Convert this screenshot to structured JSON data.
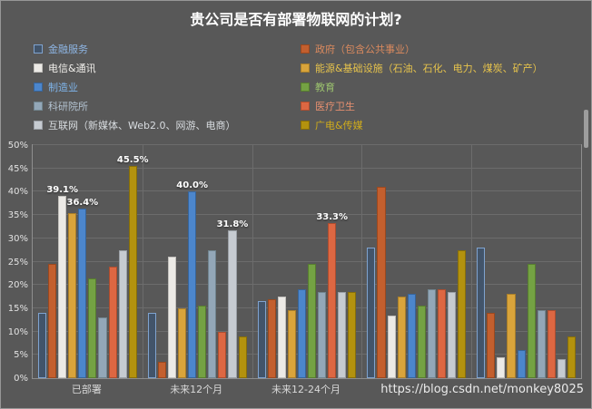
{
  "watermark": "https://blog.csdn.net/monkey8025",
  "chart_data": {
    "type": "bar",
    "title": "贵公司是否有部署物联网的计划?",
    "categories": [
      "已部署",
      "未来12个月",
      "未来12-24个月",
      "",
      ""
    ],
    "ylim": [
      0,
      50
    ],
    "ytick_step": 5,
    "ytick_suffix": "%",
    "grid": true,
    "legend_position": "top",
    "series": [
      {
        "name": "金融服务",
        "fill": "#42546a",
        "border": "#7fa3cf",
        "legend_text": "#8db4e2",
        "values": [
          14.0,
          14.0,
          16.5,
          28.0,
          28.0
        ]
      },
      {
        "name": "政府（包含公共事业）",
        "fill": "#c35f2e",
        "border": "#99481f",
        "legend_text": "#db8a5e",
        "values": [
          24.5,
          3.5,
          17.0,
          41.0,
          14.0
        ]
      },
      {
        "name": "电信&通讯",
        "fill": "#eceae6",
        "border": "#c2c0bc",
        "legend_text": "#f0eeea",
        "values": [
          39.1,
          26.0,
          17.5,
          13.5,
          4.5
        ]
      },
      {
        "name": "能源&基础设施（石油、石化、电力、煤炭、矿产）",
        "fill": "#d9a43b",
        "border": "#a87e2a",
        "legend_text": "#e6c34c",
        "values": [
          35.5,
          15.0,
          14.5,
          17.5,
          18.0
        ]
      },
      {
        "name": "制造业",
        "fill": "#4c86cc",
        "border": "#376499",
        "legend_text": "#7eb3e8",
        "values": [
          36.4,
          40.0,
          19.0,
          18.0,
          6.0
        ]
      },
      {
        "name": "教育",
        "fill": "#74a243",
        "border": "#577c30",
        "legend_text": "#9cc36e",
        "values": [
          21.5,
          15.5,
          24.5,
          15.5,
          24.5
        ]
      },
      {
        "name": "科研院所",
        "fill": "#93a7b8",
        "border": "#71858f",
        "legend_text": "#b3c3d1",
        "values": [
          13.0,
          27.5,
          18.5,
          19.0,
          14.5
        ]
      },
      {
        "name": "医疗卫生",
        "fill": "#dd6742",
        "border": "#ad4d2f",
        "legend_text": "#e89070",
        "values": [
          24.0,
          10.0,
          33.3,
          19.0,
          14.5
        ]
      },
      {
        "name": "互联网（新媒体、Web2.0、网游、电商）",
        "fill": "#c6cbd1",
        "border": "#9ba0a6",
        "legend_text": "#d8dce0",
        "values": [
          27.5,
          31.8,
          18.5,
          18.5,
          4.0
        ]
      },
      {
        "name": "广电&传媒",
        "fill": "#b3920e",
        "border": "#876e0a",
        "legend_text": "#d0ac1b",
        "values": [
          45.5,
          9.0,
          18.5,
          27.5,
          9.0
        ]
      }
    ],
    "point_labels": [
      {
        "series": 2,
        "category": 0,
        "text": "39.1%"
      },
      {
        "series": 4,
        "category": 0,
        "text": "36.4%"
      },
      {
        "series": 9,
        "category": 0,
        "text": "45.5%"
      },
      {
        "series": 4,
        "category": 1,
        "text": "40.0%"
      },
      {
        "series": 8,
        "category": 1,
        "text": "31.8%"
      },
      {
        "series": 7,
        "category": 2,
        "text": "33.3%"
      }
    ]
  }
}
